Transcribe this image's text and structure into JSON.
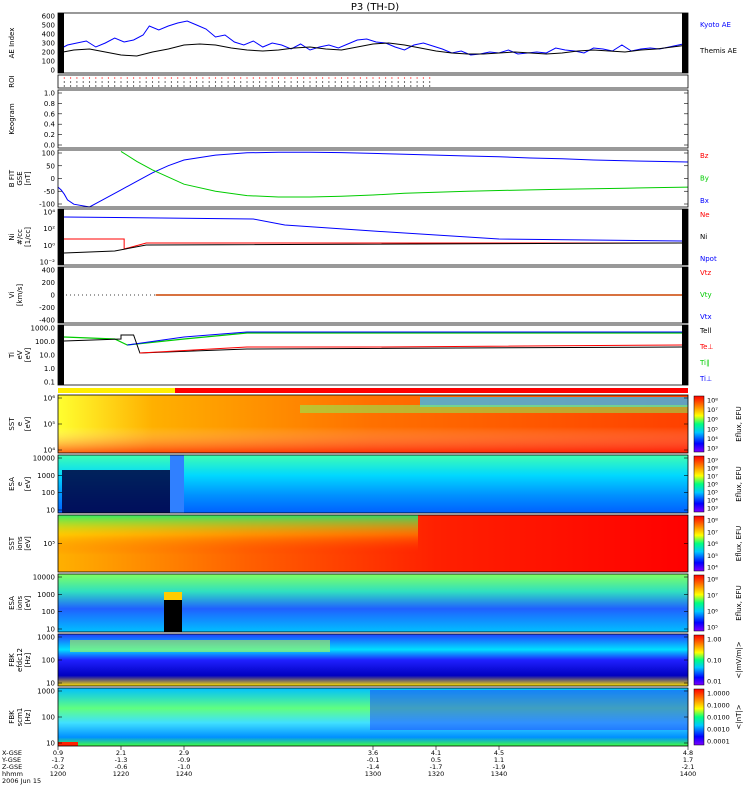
{
  "title": "P3 (TH-D)",
  "colors": {
    "blue": "#0000ff",
    "red": "#ff0000",
    "green": "#00cc00",
    "black": "#000000"
  },
  "chart_data": [
    {
      "id": "ae",
      "type": "line",
      "ylabel": "AE Index",
      "yticks": [
        "600",
        "500",
        "400",
        "300",
        "200",
        "100",
        "0"
      ],
      "ylim": [
        0,
        600
      ],
      "legend": [
        "Kyoto AE",
        "Themis AE"
      ],
      "legend_colors": [
        "#0000ff",
        "#000000"
      ],
      "series": [
        {
          "name": "Kyoto AE",
          "color": "#0000ff",
          "x": [
            1200,
            1203,
            1206,
            1209,
            1212,
            1215,
            1218,
            1221,
            1224,
            1227,
            1229,
            1232,
            1235,
            1238,
            1241,
            1244,
            1247,
            1250,
            1253,
            1256,
            1259,
            1262,
            1265,
            1268,
            1271,
            1274,
            1277,
            1280,
            1283,
            1286,
            1289,
            1292,
            1295,
            1298,
            1301,
            1304,
            1307,
            1310,
            1313,
            1316,
            1319,
            1322,
            1325,
            1328,
            1331,
            1334,
            1337,
            1340,
            1343,
            1346,
            1349,
            1352,
            1355,
            1358,
            1361,
            1364,
            1367,
            1370,
            1373,
            1376,
            1379,
            1382,
            1385,
            1388,
            1391,
            1394,
            1397,
            1400
          ],
          "y": [
            230,
            280,
            300,
            320,
            260,
            300,
            350,
            310,
            330,
            380,
            470,
            430,
            470,
            500,
            520,
            480,
            440,
            360,
            380,
            310,
            280,
            320,
            260,
            300,
            280,
            240,
            290,
            230,
            260,
            280,
            250,
            290,
            330,
            340,
            310,
            300,
            260,
            230,
            280,
            300,
            270,
            240,
            200,
            220,
            180,
            190,
            210,
            200,
            230,
            190,
            200,
            210,
            200,
            250,
            230,
            220,
            200,
            250,
            240,
            220,
            280,
            220,
            240,
            250,
            240,
            260,
            280,
            300
          ]
        },
        {
          "name": "Themis AE",
          "color": "#000000",
          "x": [
            1200,
            1205,
            1210,
            1215,
            1220,
            1225,
            1230,
            1235,
            1240,
            1245,
            1250,
            1255,
            1260,
            1265,
            1270,
            1275,
            1280,
            1285,
            1290,
            1295,
            1300,
            1305,
            1310,
            1315,
            1320,
            1325,
            1330,
            1335,
            1340,
            1345,
            1350,
            1355,
            1360,
            1365,
            1370,
            1375,
            1380,
            1385,
            1390,
            1395,
            1400
          ],
          "y": [
            200,
            230,
            240,
            210,
            180,
            170,
            210,
            240,
            280,
            290,
            280,
            250,
            230,
            220,
            230,
            250,
            260,
            240,
            230,
            260,
            290,
            300,
            280,
            250,
            220,
            200,
            190,
            190,
            200,
            210,
            200,
            190,
            200,
            220,
            230,
            220,
            210,
            230,
            240,
            260,
            280
          ]
        }
      ]
    },
    {
      "id": "roi",
      "type": "scatter",
      "ylabel": "ROI"
    },
    {
      "id": "keogram",
      "type": "line",
      "ylabel": "Keogram",
      "yticks": [
        "1.0",
        "0.8",
        "0.6",
        "0.4",
        "0.2",
        "0.0"
      ],
      "ylim": [
        0,
        1
      ]
    },
    {
      "id": "bfit",
      "type": "line",
      "ylabel": "B FIT\nGSE\n[nT]",
      "yticks": [
        "100",
        "50",
        "0",
        "-50",
        "-100"
      ],
      "ylim": [
        -100,
        100
      ],
      "legend": [
        "Bz",
        "By",
        "Bx"
      ],
      "legend_colors": [
        "#ff0000",
        "#00cc00",
        "#0000ff"
      ],
      "series": [
        {
          "name": "Bx",
          "color": "#0000ff",
          "x": [
            1200,
            1201,
            1202,
            1203,
            1205,
            1210,
            1215,
            1220,
            1225,
            1230,
            1235,
            1240,
            1250,
            1260,
            1270,
            1280,
            1290,
            1300,
            1310,
            1320,
            1330,
            1340,
            1350,
            1360,
            1370,
            1380,
            1390,
            1400
          ],
          "y": [
            -30,
            -40,
            -55,
            -75,
            -90,
            -100,
            -70,
            -40,
            -10,
            20,
            45,
            65,
            82,
            90,
            92,
            92,
            91,
            88,
            85,
            82,
            79,
            76,
            72,
            69,
            65,
            62,
            60,
            58
          ]
        },
        {
          "name": "By",
          "color": "#00cc00",
          "x": [
            1220,
            1225,
            1230,
            1235,
            1240,
            1250,
            1260,
            1270,
            1280,
            1290,
            1300,
            1310,
            1320,
            1330,
            1340,
            1350,
            1360,
            1370,
            1380,
            1390,
            1400
          ],
          "y": [
            95,
            60,
            30,
            5,
            -20,
            -45,
            -60,
            -65,
            -65,
            -62,
            -58,
            -52,
            -48,
            -45,
            -42,
            -40,
            -38,
            -36,
            -34,
            -32,
            -30
          ]
        }
      ]
    },
    {
      "id": "ni",
      "type": "line",
      "ylabel": "Ni\n#/cc\n[1/cc]",
      "yticks": [
        "10⁴",
        "10²",
        "10⁰",
        "10⁻²"
      ],
      "ylim": [
        -2.5,
        4.5
      ],
      "legend": [
        "Ne",
        "Ni",
        "Npot"
      ],
      "legend_colors": [
        "#ff0000",
        "#000000",
        "#0000ff"
      ]
    },
    {
      "id": "vi",
      "type": "line",
      "ylabel": "Vi\n[km/s]",
      "yticks": [
        "400",
        "200",
        "0",
        "-200",
        "-400"
      ],
      "ylim": [
        -400,
        400
      ],
      "legend": [
        "Vtz",
        "Vty",
        "Vtx"
      ],
      "legend_colors": [
        "#ff0000",
        "#00cc00",
        "#0000ff"
      ]
    },
    {
      "id": "ti",
      "type": "line",
      "ylabel": "Ti\neV\n[eV]",
      "yticks": [
        "1000.0",
        "100.0",
        "10.0",
        "1.0",
        "0.1"
      ],
      "ylim": [
        -1,
        3.5
      ],
      "legend": [
        "Tell",
        "Te⊥",
        "Ti∥",
        "Ti⊥"
      ],
      "legend_colors": [
        "#000000",
        "#ff0000",
        "#00cc00",
        "#0000ff"
      ]
    },
    {
      "id": "sst1",
      "type": "heatmap",
      "ylabel": "SST\ne\n[eV]",
      "yticks": [
        "10⁶",
        "10⁵",
        "10⁴"
      ],
      "cbar_ticks": [
        "10⁸",
        "10⁷",
        "10⁶",
        "10⁵",
        "10⁴",
        "10³"
      ],
      "cbar_label": "Eflux, EFU"
    },
    {
      "id": "esa1",
      "type": "heatmap",
      "ylabel": "ESA\ne\n[eV]",
      "yticks": [
        "10000",
        "1000",
        "100",
        "10"
      ],
      "cbar_ticks": [
        "10⁹",
        "10⁸",
        "10⁷",
        "10⁶",
        "10⁵",
        "10⁴",
        "10³"
      ],
      "cbar_label": "Eflux, EFU"
    },
    {
      "id": "sst2",
      "type": "heatmap",
      "ylabel": "SST\nions\n[eV]",
      "yticks": [
        "10⁵"
      ],
      "cbar_ticks": [
        "10⁸",
        "10⁷",
        "10⁶",
        "10⁵",
        "10⁴"
      ],
      "cbar_label": "Eflux, EFU"
    },
    {
      "id": "esa2",
      "type": "heatmap",
      "ylabel": "ESA\nions\n[eV]",
      "yticks": [
        "10000",
        "1000",
        "100",
        "10"
      ],
      "cbar_ticks": [
        "10⁸",
        "10⁷",
        "10⁶",
        "10⁵"
      ],
      "cbar_label": "Eflux, EFU"
    },
    {
      "id": "fbk1",
      "type": "heatmap",
      "ylabel": "FBK\nefdc12\n[Hz]",
      "yticks": [
        "1000",
        "100",
        "10"
      ],
      "cbar_ticks": [
        "1.00",
        "0.10",
        "0.01"
      ],
      "cbar_label": "<|mV/m|>"
    },
    {
      "id": "fbk2",
      "type": "heatmap",
      "ylabel": "FBK\nscm1\n[Hz]",
      "yticks": [
        "1000",
        "100",
        "10"
      ],
      "cbar_ticks": [
        "1.0000",
        "0.1000",
        "0.0100",
        "0.0010",
        "0.0001"
      ],
      "cbar_label": "<|nT|>"
    }
  ],
  "xaxis": {
    "ticks": [
      {
        "x": 1200,
        "vals": [
          "0.9",
          "-1.7",
          "-0.2",
          "1200"
        ]
      },
      {
        "x": 1220,
        "vals": [
          "2.1",
          "-1.3",
          "-0.6",
          "1220"
        ]
      },
      {
        "x": 1240,
        "vals": [
          "2.9",
          "-0.9",
          "-1.0",
          "1240"
        ]
      },
      {
        "x": 1300,
        "vals": [
          "3.6",
          "-0.1",
          "-1.4",
          "1300"
        ]
      },
      {
        "x": 1320,
        "vals": [
          "4.1",
          "0.5",
          "-1.7",
          "1320"
        ]
      },
      {
        "x": 1340,
        "vals": [
          "4.5",
          "1.1",
          "-1.9",
          "1340"
        ]
      },
      {
        "x": 1400,
        "vals": [
          "4.8",
          "1.7",
          "-2.1",
          "1400"
        ]
      }
    ],
    "row_labels": [
      "X-GSE",
      "Y-GSE",
      "Z-GSE",
      "hhmm"
    ],
    "date": "2006 Jun 15"
  }
}
